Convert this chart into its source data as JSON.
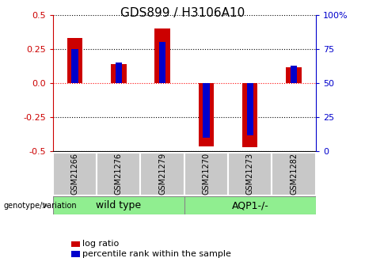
{
  "title": "GDS899 / H3106A10",
  "samples": [
    "GSM21266",
    "GSM21276",
    "GSM21279",
    "GSM21270",
    "GSM21273",
    "GSM21282"
  ],
  "log_ratios": [
    0.33,
    0.14,
    0.4,
    -0.46,
    -0.47,
    0.12
  ],
  "percentile_ranks_raw": [
    75,
    65,
    80,
    10,
    12,
    63
  ],
  "bar_width": 0.35,
  "blue_bar_width": 0.15,
  "bar_color_red": "#cc0000",
  "bar_color_blue": "#0000cc",
  "ylim": [
    -0.5,
    0.5
  ],
  "yticks_left": [
    -0.5,
    -0.25,
    0.0,
    0.25,
    0.5
  ],
  "yticks_right": [
    0,
    25,
    50,
    75,
    100
  ],
  "group_label_wt": "wild type",
  "group_label_aqp": "AQP1-/-",
  "group_color_light": "#90ee90",
  "sample_box_color": "#c8c8c8",
  "label_log_ratio": "log ratio",
  "label_percentile": "percentile rank within the sample",
  "genotype_label": "genotype/variation",
  "title_fontsize": 11,
  "tick_label_color_left": "#cc0000",
  "tick_label_color_right": "#0000cc",
  "tick_fontsize": 8,
  "sample_fontsize": 7,
  "group_fontsize": 9,
  "legend_fontsize": 8
}
